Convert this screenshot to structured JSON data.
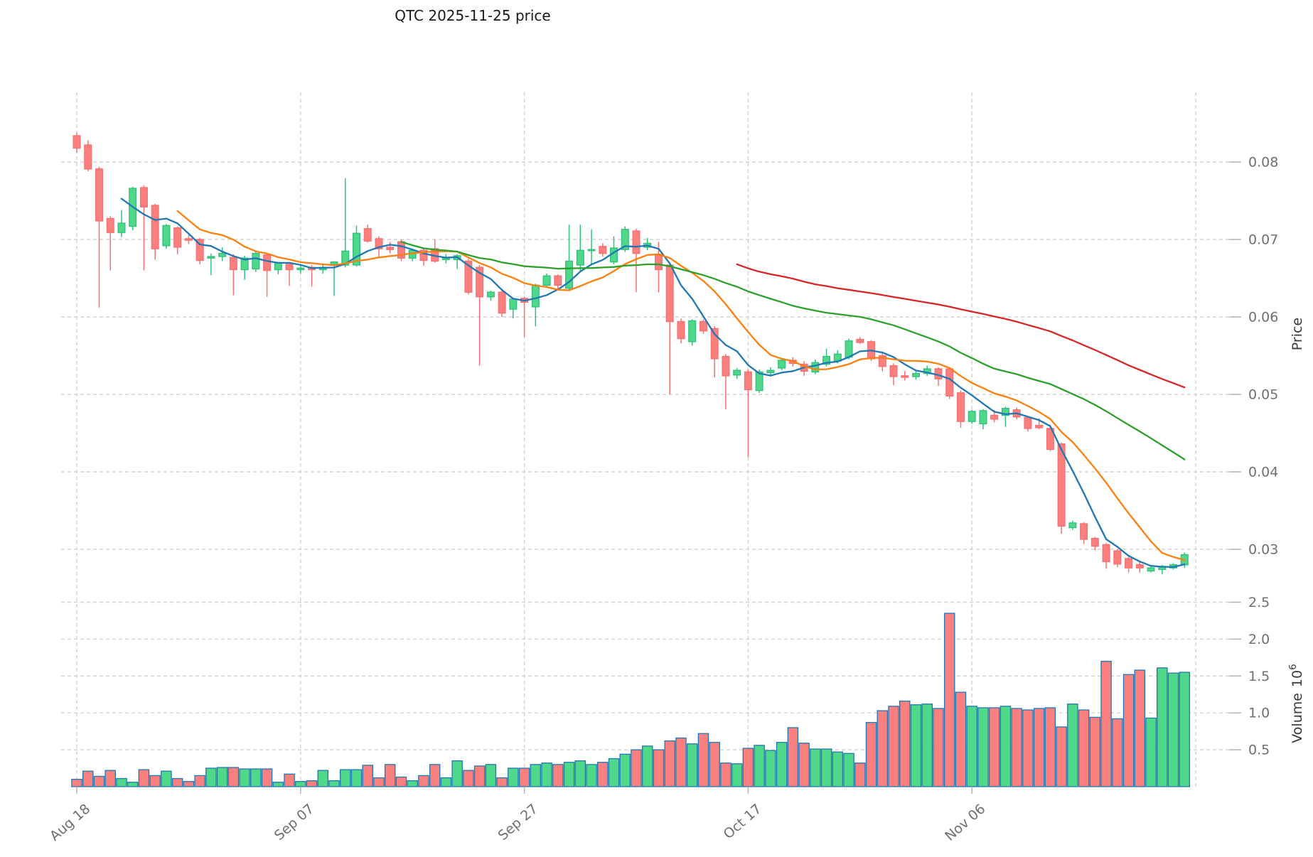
{
  "chart_data": {
    "type": "candlestick",
    "title": "QTC  2025-11-25  price",
    "price_axis": {
      "title": "Price",
      "ticks": [
        "0.08",
        "0.07",
        "0.06",
        "0.05",
        "0.04",
        "0.03"
      ],
      "tick_values": [
        0.08,
        0.07,
        0.06,
        0.05,
        0.04,
        0.03
      ],
      "range": [
        0.0262,
        0.089
      ]
    },
    "volume_axis": {
      "title_label": "Volume",
      "title_unit_base": "10",
      "title_unit_exp": "6",
      "ticks": [
        "0.5",
        "1.0",
        "1.5",
        "2.0",
        "2.5"
      ],
      "tick_values": [
        0.5,
        1.0,
        1.5,
        2.0,
        2.5
      ],
      "range": [
        0,
        2.8
      ]
    },
    "x_axis": {
      "tick_labels": [
        "Aug 18",
        "Sep 07",
        "Sep 27",
        "Oct 17",
        "Nov 06"
      ],
      "tick_indices": [
        0,
        20,
        40,
        60,
        80
      ],
      "extra_gridline_index": 100,
      "grid": true
    },
    "legend_position": "none",
    "ma_lines": [
      {
        "name": "SMA5",
        "window": 5,
        "color": "#1f77b4"
      },
      {
        "name": "SMA10",
        "window": 10,
        "color": "#ff7f0e"
      },
      {
        "name": "SMA30",
        "window": 30,
        "color": "#2ca02c"
      },
      {
        "name": "SMA60",
        "window": 60,
        "color": "#d62728"
      }
    ],
    "colors": {
      "up_fill": "#50d88a",
      "up_edge": "#32c17c",
      "down_fill": "#fa8080",
      "down_edge": "#f87171",
      "volume_edge": "#1f77b4",
      "grid": "#d2d2d2",
      "tick_mark": "#b5b5b5",
      "tick_text": "#6f6f6f",
      "title_text": "#1a1a1a"
    },
    "ohlc": [
      [
        0.0834,
        0.0838,
        0.0812,
        0.0818
      ],
      [
        0.0822,
        0.0828,
        0.0788,
        0.0791
      ],
      [
        0.0791,
        0.0794,
        0.0612,
        0.0724
      ],
      [
        0.0727,
        0.073,
        0.066,
        0.0709
      ],
      [
        0.0709,
        0.0738,
        0.0703,
        0.0721
      ],
      [
        0.0717,
        0.0768,
        0.0712,
        0.0766
      ],
      [
        0.0767,
        0.077,
        0.066,
        0.0742
      ],
      [
        0.0744,
        0.0746,
        0.0674,
        0.0688
      ],
      [
        0.0692,
        0.072,
        0.0688,
        0.0718
      ],
      [
        0.0715,
        0.0717,
        0.0681,
        0.069
      ],
      [
        0.0701,
        0.0706,
        0.0694,
        0.0699
      ],
      [
        0.07,
        0.0702,
        0.0668,
        0.0673
      ],
      [
        0.0676,
        0.0682,
        0.0654,
        0.0678
      ],
      [
        0.0678,
        0.069,
        0.0672,
        0.0682
      ],
      [
        0.0677,
        0.0681,
        0.0628,
        0.0661
      ],
      [
        0.0661,
        0.0679,
        0.0648,
        0.0676
      ],
      [
        0.0662,
        0.0685,
        0.0658,
        0.0682
      ],
      [
        0.068,
        0.0683,
        0.0626,
        0.066
      ],
      [
        0.0661,
        0.0671,
        0.0655,
        0.067
      ],
      [
        0.0668,
        0.0671,
        0.064,
        0.0661
      ],
      [
        0.0661,
        0.0666,
        0.0656,
        0.0663
      ],
      [
        0.0664,
        0.0667,
        0.0639,
        0.0661
      ],
      [
        0.0661,
        0.0669,
        0.0656,
        0.0663
      ],
      [
        0.0667,
        0.0672,
        0.0627,
        0.0671
      ],
      [
        0.0667,
        0.0779,
        0.0664,
        0.0685
      ],
      [
        0.0667,
        0.0718,
        0.0665,
        0.0708
      ],
      [
        0.0714,
        0.0719,
        0.0696,
        0.0698
      ],
      [
        0.0701,
        0.0704,
        0.0678,
        0.0688
      ],
      [
        0.069,
        0.0697,
        0.0682,
        0.0687
      ],
      [
        0.0697,
        0.07,
        0.0672,
        0.0676
      ],
      [
        0.0676,
        0.0688,
        0.0672,
        0.0686
      ],
      [
        0.0686,
        0.0688,
        0.0666,
        0.0673
      ],
      [
        0.0688,
        0.07,
        0.067,
        0.0672
      ],
      [
        0.0674,
        0.0681,
        0.0669,
        0.0676
      ],
      [
        0.0674,
        0.0681,
        0.0662,
        0.0679
      ],
      [
        0.0672,
        0.0675,
        0.0629,
        0.0632
      ],
      [
        0.0664,
        0.0667,
        0.0537,
        0.0626
      ],
      [
        0.0626,
        0.0634,
        0.0621,
        0.0632
      ],
      [
        0.0632,
        0.0636,
        0.06,
        0.0605
      ],
      [
        0.061,
        0.0625,
        0.0598,
        0.0623
      ],
      [
        0.0624,
        0.0626,
        0.0574,
        0.0619
      ],
      [
        0.0613,
        0.0643,
        0.0588,
        0.0641
      ],
      [
        0.0641,
        0.0656,
        0.0638,
        0.0653
      ],
      [
        0.0653,
        0.0655,
        0.0636,
        0.0641
      ],
      [
        0.0637,
        0.0719,
        0.0634,
        0.0672
      ],
      [
        0.0667,
        0.0719,
        0.066,
        0.0686
      ],
      [
        0.0686,
        0.0713,
        0.0668,
        0.0687
      ],
      [
        0.0691,
        0.0695,
        0.0678,
        0.0682
      ],
      [
        0.0671,
        0.0704,
        0.0668,
        0.0689
      ],
      [
        0.0687,
        0.0717,
        0.0684,
        0.0713
      ],
      [
        0.0711,
        0.0714,
        0.0632,
        0.0682
      ],
      [
        0.069,
        0.0702,
        0.0686,
        0.0695
      ],
      [
        0.0681,
        0.0697,
        0.0632,
        0.0661
      ],
      [
        0.0667,
        0.067,
        0.05,
        0.0594
      ],
      [
        0.0594,
        0.0598,
        0.0566,
        0.0572
      ],
      [
        0.0568,
        0.0597,
        0.0563,
        0.0595
      ],
      [
        0.0594,
        0.0597,
        0.0578,
        0.0582
      ],
      [
        0.0585,
        0.0588,
        0.0522,
        0.0546
      ],
      [
        0.0549,
        0.0552,
        0.0481,
        0.0524
      ],
      [
        0.0525,
        0.0534,
        0.052,
        0.0531
      ],
      [
        0.0529,
        0.0532,
        0.0419,
        0.0506
      ],
      [
        0.0505,
        0.0532,
        0.0502,
        0.0529
      ],
      [
        0.0528,
        0.0535,
        0.0524,
        0.0531
      ],
      [
        0.0534,
        0.0547,
        0.0531,
        0.0544
      ],
      [
        0.0544,
        0.0548,
        0.0536,
        0.054
      ],
      [
        0.0539,
        0.0543,
        0.0524,
        0.053
      ],
      [
        0.0529,
        0.0545,
        0.0526,
        0.0541
      ],
      [
        0.0539,
        0.0559,
        0.0536,
        0.0549
      ],
      [
        0.0543,
        0.0557,
        0.054,
        0.0552
      ],
      [
        0.0548,
        0.0572,
        0.0545,
        0.0569
      ],
      [
        0.0571,
        0.0574,
        0.0565,
        0.0567
      ],
      [
        0.0568,
        0.057,
        0.0543,
        0.0546
      ],
      [
        0.055,
        0.0553,
        0.053,
        0.0536
      ],
      [
        0.0537,
        0.054,
        0.0512,
        0.0523
      ],
      [
        0.0524,
        0.053,
        0.0518,
        0.0522
      ],
      [
        0.0523,
        0.053,
        0.0519,
        0.0527
      ],
      [
        0.0527,
        0.0537,
        0.0524,
        0.0533
      ],
      [
        0.0533,
        0.0535,
        0.0511,
        0.052
      ],
      [
        0.0533,
        0.0535,
        0.0494,
        0.0498
      ],
      [
        0.0502,
        0.0505,
        0.0457,
        0.0465
      ],
      [
        0.0465,
        0.048,
        0.0462,
        0.0478
      ],
      [
        0.0462,
        0.0481,
        0.0455,
        0.0479
      ],
      [
        0.0473,
        0.048,
        0.0464,
        0.0468
      ],
      [
        0.0473,
        0.0484,
        0.0458,
        0.0482
      ],
      [
        0.048,
        0.0483,
        0.0468,
        0.0471
      ],
      [
        0.047,
        0.0472,
        0.0452,
        0.0456
      ],
      [
        0.046,
        0.0469,
        0.0455,
        0.0457
      ],
      [
        0.0456,
        0.0461,
        0.0427,
        0.0429
      ],
      [
        0.0436,
        0.0438,
        0.032,
        0.033
      ],
      [
        0.0328,
        0.0337,
        0.0325,
        0.0334
      ],
      [
        0.0333,
        0.0335,
        0.0307,
        0.0313
      ],
      [
        0.0314,
        0.0316,
        0.0299,
        0.0304
      ],
      [
        0.0306,
        0.0308,
        0.0275,
        0.0284
      ],
      [
        0.0298,
        0.03,
        0.0277,
        0.0281
      ],
      [
        0.0288,
        0.029,
        0.027,
        0.0276
      ],
      [
        0.028,
        0.0285,
        0.027,
        0.0276
      ],
      [
        0.0272,
        0.0278,
        0.027,
        0.0276
      ],
      [
        0.0274,
        0.028,
        0.0268,
        0.0278
      ],
      [
        0.0276,
        0.0282,
        0.0274,
        0.028
      ],
      [
        0.028,
        0.0296,
        0.0276,
        0.0293
      ]
    ],
    "volume": [
      0.1,
      0.21,
      0.14,
      0.22,
      0.11,
      0.06,
      0.23,
      0.15,
      0.21,
      0.11,
      0.07,
      0.15,
      0.25,
      0.26,
      0.26,
      0.24,
      0.24,
      0.24,
      0.06,
      0.17,
      0.07,
      0.08,
      0.22,
      0.08,
      0.23,
      0.23,
      0.29,
      0.12,
      0.3,
      0.13,
      0.08,
      0.15,
      0.3,
      0.12,
      0.35,
      0.22,
      0.28,
      0.3,
      0.12,
      0.25,
      0.25,
      0.3,
      0.32,
      0.3,
      0.33,
      0.35,
      0.3,
      0.33,
      0.38,
      0.44,
      0.5,
      0.55,
      0.5,
      0.62,
      0.66,
      0.58,
      0.72,
      0.6,
      0.32,
      0.31,
      0.52,
      0.56,
      0.49,
      0.6,
      0.8,
      0.59,
      0.51,
      0.51,
      0.47,
      0.45,
      0.32,
      0.87,
      1.03,
      1.09,
      1.16,
      1.11,
      1.12,
      1.06,
      2.35,
      1.28,
      1.09,
      1.07,
      1.07,
      1.09,
      1.06,
      1.04,
      1.06,
      1.07,
      0.81,
      1.12,
      1.04,
      0.94,
      1.7,
      0.92,
      1.52,
      1.58,
      0.93,
      1.61,
      1.54,
      1.55
    ]
  }
}
